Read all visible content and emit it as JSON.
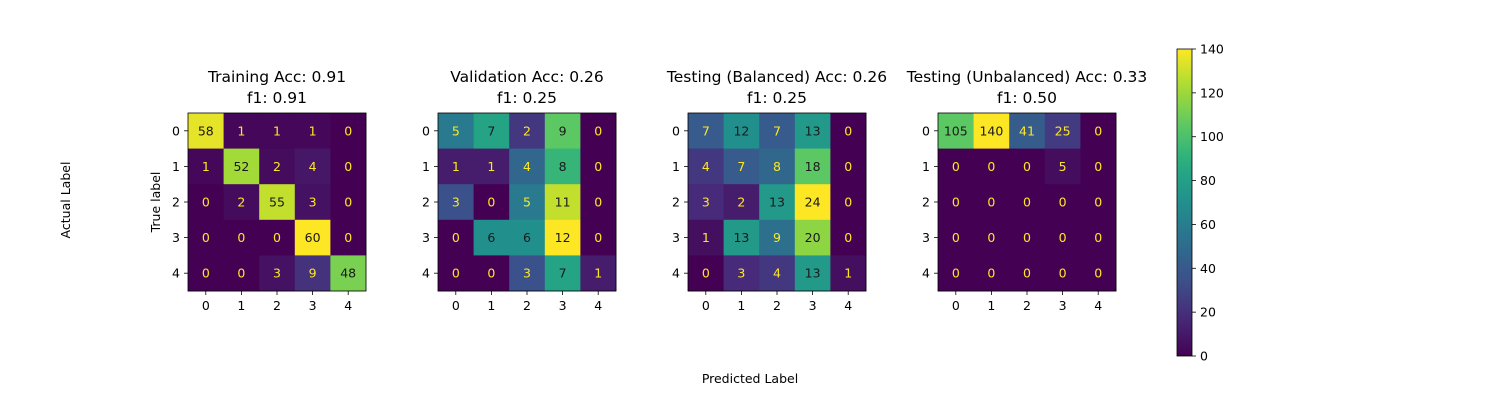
{
  "figure": {
    "xlabel": "Predicted Label",
    "ylabel": "Actual Label"
  },
  "chart_data": [
    {
      "type": "heatmap",
      "title_line1": "Training Acc: 0.91",
      "title_line2": "f1: 0.91",
      "ylabel": "True label",
      "xlabel": "",
      "x_ticks": [
        "0",
        "1",
        "2",
        "3",
        "4"
      ],
      "y_ticks": [
        "0",
        "1",
        "2",
        "3",
        "4"
      ],
      "matrix": [
        [
          58,
          1,
          1,
          1,
          0
        ],
        [
          1,
          52,
          2,
          4,
          0
        ],
        [
          0,
          2,
          55,
          3,
          0
        ],
        [
          0,
          0,
          0,
          60,
          0
        ],
        [
          0,
          0,
          3,
          9,
          48
        ]
      ]
    },
    {
      "type": "heatmap",
      "title_line1": "Validation Acc: 0.26",
      "title_line2": "f1: 0.25",
      "ylabel": "",
      "xlabel": "",
      "x_ticks": [
        "0",
        "1",
        "2",
        "3",
        "4"
      ],
      "y_ticks": [
        "0",
        "1",
        "2",
        "3",
        "4"
      ],
      "matrix": [
        [
          5,
          7,
          2,
          9,
          0
        ],
        [
          1,
          1,
          4,
          8,
          0
        ],
        [
          3,
          0,
          5,
          11,
          0
        ],
        [
          0,
          6,
          6,
          12,
          0
        ],
        [
          0,
          0,
          3,
          7,
          1
        ]
      ]
    },
    {
      "type": "heatmap",
      "title_line1": "Testing (Balanced) Acc: 0.26",
      "title_line2": "f1: 0.25",
      "ylabel": "",
      "xlabel": "",
      "x_ticks": [
        "0",
        "1",
        "2",
        "3",
        "4"
      ],
      "y_ticks": [
        "0",
        "1",
        "2",
        "3",
        "4"
      ],
      "matrix": [
        [
          7,
          12,
          7,
          13,
          0
        ],
        [
          4,
          7,
          8,
          18,
          0
        ],
        [
          3,
          2,
          13,
          24,
          0
        ],
        [
          1,
          13,
          9,
          20,
          0
        ],
        [
          0,
          3,
          4,
          13,
          1
        ]
      ]
    },
    {
      "type": "heatmap",
      "title_line1": "Testing (Unbalanced) Acc: 0.33",
      "title_line2": "f1: 0.50",
      "ylabel": "",
      "xlabel": "",
      "x_ticks": [
        "0",
        "1",
        "2",
        "3",
        "4"
      ],
      "y_ticks": [
        "0",
        "1",
        "2",
        "3",
        "4"
      ],
      "matrix": [
        [
          105,
          140,
          41,
          25,
          0
        ],
        [
          0,
          0,
          0,
          5,
          0
        ],
        [
          0,
          0,
          0,
          0,
          0
        ],
        [
          0,
          0,
          0,
          0,
          0
        ],
        [
          0,
          0,
          0,
          0,
          0
        ]
      ]
    }
  ],
  "colorbar": {
    "colormap": "viridis",
    "min": 0,
    "max": 140,
    "ticks": [
      0,
      20,
      40,
      60,
      80,
      100,
      120,
      140
    ]
  },
  "colors": {
    "text_low": "#fde725",
    "text_high": "#1a1a1a"
  }
}
